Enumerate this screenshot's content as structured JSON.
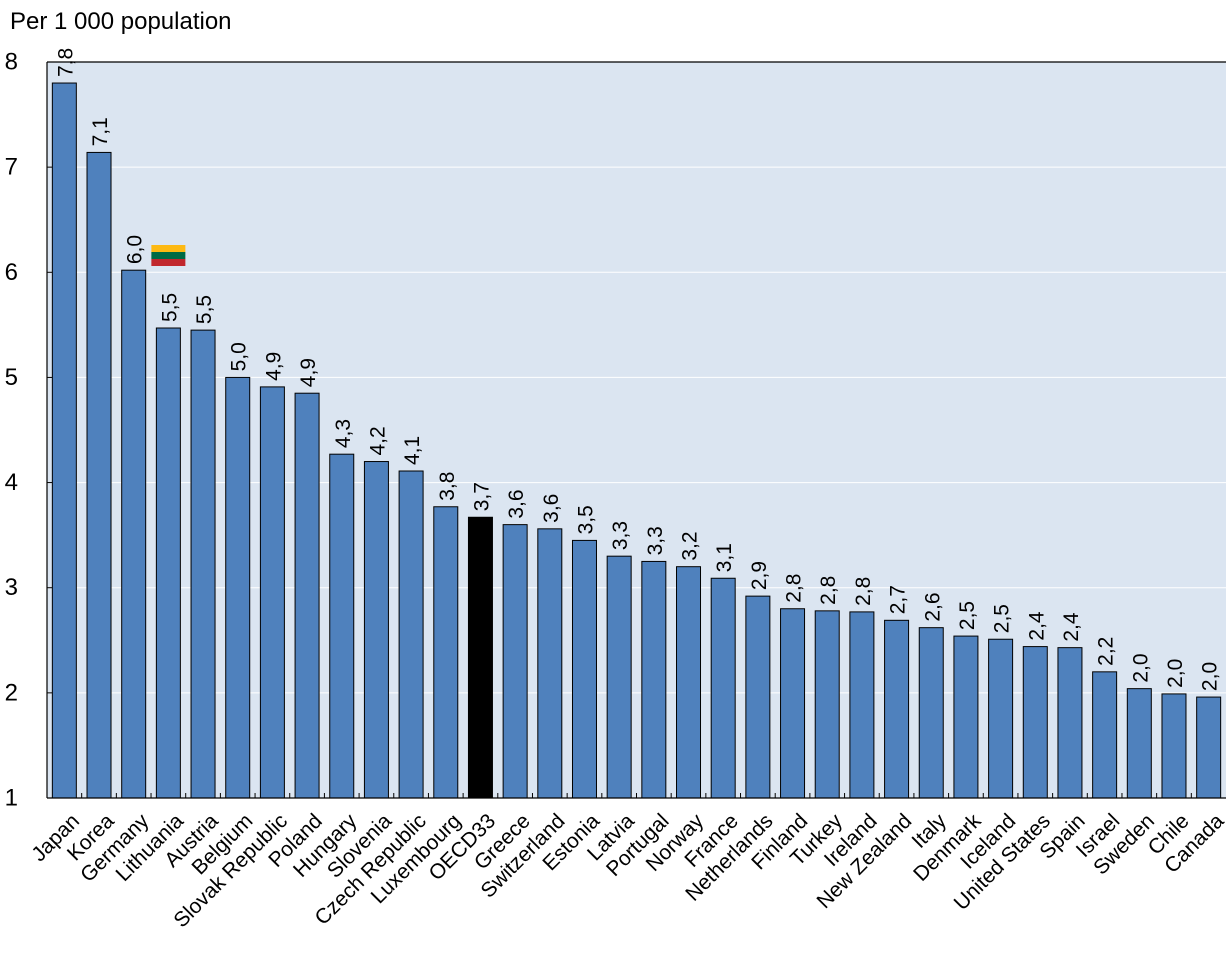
{
  "chart_data": {
    "type": "bar",
    "ylabel": "Per 1 000 population",
    "ylim": [
      1,
      8
    ],
    "yticks": [
      "1",
      "2",
      "3",
      "4",
      "5",
      "6",
      "7",
      "8"
    ],
    "grid": true,
    "colors": {
      "bar": "#4f81bd",
      "highlight": "#000000",
      "grid": "#ffffff",
      "plot_background": "#dbe5f1",
      "flag_yellow": "#fdb913",
      "flag_green": "#006a44",
      "flag_red": "#c1272d"
    },
    "highlight_category": "OECD33",
    "flag_category": "Lithuania",
    "flag_icon": "lithuania-flag-icon",
    "categories": [
      "Japan",
      "Korea",
      "Germany",
      "Lithuania",
      "Austria",
      "Belgium",
      "Slovak Republic",
      "Poland",
      "Hungary",
      "Slovenia",
      "Czech Republic",
      "Luxembourg",
      "OECD33",
      "Greece",
      "Switzerland",
      "Estonia",
      "Latvia",
      "Portugal",
      "Norway",
      "France",
      "Netherlands",
      "Finland",
      "Turkey",
      "Ireland",
      "New Zealand",
      "Italy",
      "Denmark",
      "Iceland",
      "United States",
      "Spain",
      "Israel",
      "Sweden",
      "Chile",
      "Canada"
    ],
    "values": [
      7.8,
      7.14,
      6.02,
      5.47,
      5.45,
      5.0,
      4.91,
      4.85,
      4.27,
      4.2,
      4.11,
      3.77,
      3.67,
      3.6,
      3.56,
      3.45,
      3.3,
      3.25,
      3.2,
      3.09,
      2.92,
      2.8,
      2.78,
      2.77,
      2.69,
      2.62,
      2.54,
      2.51,
      2.44,
      2.43,
      2.2,
      2.04,
      1.99,
      1.96
    ],
    "value_labels": [
      "7,8",
      "7,1",
      "6,0",
      "5,5",
      "5,5",
      "5,0",
      "4,9",
      "4,9",
      "4,3",
      "4,2",
      "4,1",
      "3,8",
      "3,7",
      "3,6",
      "3,6",
      "3,5",
      "3,3",
      "3,3",
      "3,2",
      "3,1",
      "2,9",
      "2,8",
      "2,8",
      "2,8",
      "2,7",
      "2,6",
      "2,5",
      "2,5",
      "2,4",
      "2,4",
      "2,2",
      "2,0",
      "2,0",
      "2,0"
    ]
  }
}
